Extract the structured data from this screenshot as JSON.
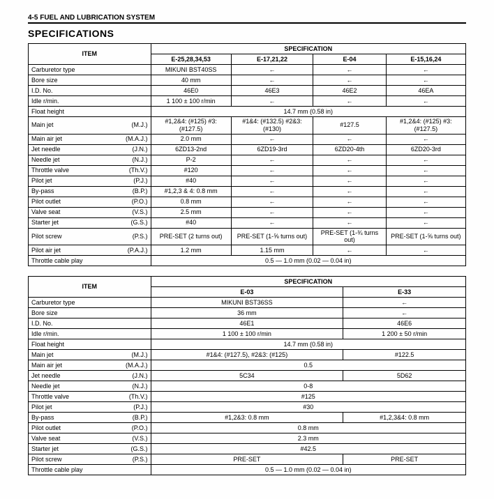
{
  "header": "4-5  FUEL AND LUBRICATION SYSTEM",
  "section_title": "SPECIFICATIONS",
  "table1": {
    "item_header": "ITEM",
    "spec_header": "SPECIFICATION",
    "cols": [
      "E-25,28,34,53",
      "E-17,21,22",
      "E-04",
      "E-15,16,24"
    ],
    "rows": [
      {
        "name": "Carburetor type",
        "abbr": "",
        "e25": "MIKUNI BST40SS",
        "e17": "←",
        "e04": "←",
        "e15": "←"
      },
      {
        "name": "Bore size",
        "abbr": "",
        "e25": "40 mm",
        "e17": "←",
        "e04": "←",
        "e15": "←"
      },
      {
        "name": "I.D. No.",
        "abbr": "",
        "e25": "46E0",
        "e17": "46E3",
        "e04": "46E2",
        "e15": "46EA"
      },
      {
        "name": "Idle r/min.",
        "abbr": "",
        "e25": "1 100 ± 100 r/min",
        "e17": "←",
        "e04": "←",
        "e15": "←"
      },
      {
        "name": "Float height",
        "abbr": "",
        "span": "14.7 mm (0.58 in)"
      },
      {
        "name": "Main jet",
        "abbr": "(M.J.)",
        "e25": "#1,2&4: (#125) #3: (#127.5)",
        "e17": "#1&4: (#132.5) #2&3: (#130)",
        "e04": "#127.5",
        "e15": "#1,2&4: (#125) #3: (#127.5)"
      },
      {
        "name": "Main air jet",
        "abbr": "(M.A.J.)",
        "e25": "2.0 mm",
        "e17": "←",
        "e04": "←",
        "e15": "←"
      },
      {
        "name": "Jet needle",
        "abbr": "(J.N.)",
        "e25": "6ZD13-2nd",
        "e17": "6ZD19-3rd",
        "e04": "6ZD20-4th",
        "e15": "6ZD20-3rd"
      },
      {
        "name": "Needle jet",
        "abbr": "(N.J.)",
        "e25": "P-2",
        "e17": "←",
        "e04": "←",
        "e15": "←"
      },
      {
        "name": "Throttle valve",
        "abbr": "(Th.V.)",
        "e25": "#120",
        "e17": "←",
        "e04": "←",
        "e15": "←"
      },
      {
        "name": "Pilot jet",
        "abbr": "(P.J.)",
        "e25": "#40",
        "e17": "←",
        "e04": "←",
        "e15": "←"
      },
      {
        "name": "By-pass",
        "abbr": "(B.P.)",
        "e25": "#1,2,3 & 4: 0.8 mm",
        "e17": "←",
        "e04": "←",
        "e15": "←"
      },
      {
        "name": "Pilot outlet",
        "abbr": "(P.O.)",
        "e25": "0.8 mm",
        "e17": "←",
        "e04": "←",
        "e15": "←"
      },
      {
        "name": "Valve seat",
        "abbr": "(V.S.)",
        "e25": "2.5 mm",
        "e17": "←",
        "e04": "←",
        "e15": "←"
      },
      {
        "name": "Starter jet",
        "abbr": "(G.S.)",
        "e25": "#40",
        "e17": "←",
        "e04": "←",
        "e15": "←"
      },
      {
        "name": "Pilot screw",
        "abbr": "(P.S.)",
        "e25": "PRE-SET (2 turns out)",
        "e17": "PRE-SET (1-⅝ turns out)",
        "e04": "PRE-SET (1-¾ turns out)",
        "e15": "PRE-SET (1-⅝ turns out)"
      },
      {
        "name": "Pilot air jet",
        "abbr": "(P.A.J.)",
        "e25": "1.2 mm",
        "e17": "1.15 mm",
        "e04": "←",
        "e15": "←"
      },
      {
        "name": "Throttle cable play",
        "abbr": "",
        "span": "0.5 — 1.0 mm (0.02 — 0.04 in)"
      }
    ]
  },
  "table2": {
    "item_header": "ITEM",
    "spec_header": "SPECIFICATION",
    "cols": [
      "E-03",
      "E-33"
    ],
    "rows": [
      {
        "name": "Carburetor type",
        "abbr": "",
        "e03": "MIKUNI BST36SS",
        "e33": "←"
      },
      {
        "name": "Bore size",
        "abbr": "",
        "e03": "36 mm",
        "e33": "←"
      },
      {
        "name": "I.D. No.",
        "abbr": "",
        "e03": "46E1",
        "e33": "46E6"
      },
      {
        "name": "Idle r/min.",
        "abbr": "",
        "e03": "1 100 ± 100 r/min",
        "e33": "1 200 ± 50 r/min"
      },
      {
        "name": "Float height",
        "abbr": "",
        "span": "14.7 mm (0.58 in)"
      },
      {
        "name": "Main jet",
        "abbr": "(M.J.)",
        "e03": "#1&4: (#127.5), #2&3: (#125)",
        "e33": "#122.5"
      },
      {
        "name": "Main air jet",
        "abbr": "(M.A.J.)",
        "span": "0.5"
      },
      {
        "name": "Jet needle",
        "abbr": "(J.N.)",
        "e03": "5C34",
        "e33": "5D62"
      },
      {
        "name": "Needle jet",
        "abbr": "(N.J.)",
        "span": "0-8"
      },
      {
        "name": "Throttle valve",
        "abbr": "(Th.V.)",
        "span": "#125"
      },
      {
        "name": "Pilot jet",
        "abbr": "(P.J.)",
        "span": "#30"
      },
      {
        "name": "By-pass",
        "abbr": "(B.P.)",
        "e03": "#1,2&3: 0.8 mm",
        "e33": "#1,2,3&4: 0.8 mm"
      },
      {
        "name": "Pilot outlet",
        "abbr": "(P.O.)",
        "span": "0.8 mm"
      },
      {
        "name": "Valve seat",
        "abbr": "(V.S.)",
        "span": "2.3 mm"
      },
      {
        "name": "Starter jet",
        "abbr": "(G.S.)",
        "span": "#42.5"
      },
      {
        "name": "Pilot screw",
        "abbr": "(P.S.)",
        "e03": "PRE-SET",
        "e33": "PRE-SET"
      },
      {
        "name": "Throttle cable play",
        "abbr": "",
        "span": "0.5 — 1.0 mm (0.02 — 0.04 in)"
      }
    ]
  }
}
